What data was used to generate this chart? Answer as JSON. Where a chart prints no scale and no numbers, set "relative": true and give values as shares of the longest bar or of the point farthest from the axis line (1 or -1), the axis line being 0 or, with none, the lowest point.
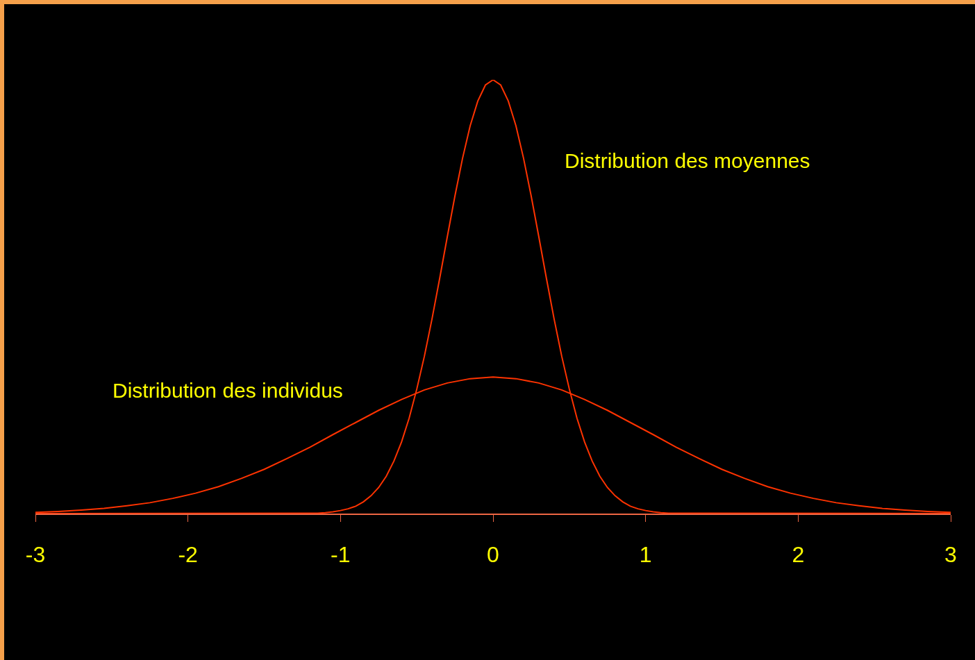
{
  "chart_data": {
    "type": "line",
    "relative": true,
    "xlim": [
      -3,
      3
    ],
    "xticks": [
      -3,
      -2,
      -1,
      0,
      1,
      2,
      3
    ],
    "series": [
      {
        "color": "#ff3300",
        "x": [
          -3,
          -2.85,
          -2.7,
          -2.55,
          -2.4,
          -2.25,
          -2.1,
          -1.95,
          -1.8,
          -1.65,
          -1.5,
          -1.35,
          -1.2,
          -1.05,
          -0.9,
          -0.75,
          -0.6,
          -0.45,
          -0.3,
          -0.15,
          0,
          0.15,
          0.3,
          0.45,
          0.6,
          0.75,
          0.9,
          1.05,
          1.2,
          1.35,
          1.5,
          1.65,
          1.8,
          1.95,
          2.1,
          2.25,
          2.4,
          2.55,
          2.7,
          2.85,
          3
        ],
        "values": [
          0.003,
          0.005,
          0.008,
          0.012,
          0.018,
          0.025,
          0.035,
          0.047,
          0.062,
          0.081,
          0.102,
          0.127,
          0.153,
          0.182,
          0.21,
          0.238,
          0.263,
          0.285,
          0.301,
          0.311,
          0.315,
          0.311,
          0.301,
          0.285,
          0.263,
          0.238,
          0.21,
          0.182,
          0.153,
          0.127,
          0.102,
          0.081,
          0.062,
          0.047,
          0.035,
          0.025,
          0.018,
          0.012,
          0.008,
          0.005,
          0.003
        ]
      },
      {
        "color": "#ff3300",
        "x": [
          -3,
          -1.2,
          -1.15,
          -1.1,
          -1.05,
          -1,
          -0.95,
          -0.9,
          -0.85,
          -0.8,
          -0.75,
          -0.7,
          -0.65,
          -0.6,
          -0.55,
          -0.5,
          -0.45,
          -0.4,
          -0.35,
          -0.3,
          -0.25,
          -0.2,
          -0.15,
          -0.1,
          -0.05,
          0,
          0.05,
          0.1,
          0.15,
          0.2,
          0.25,
          0.3,
          0.35,
          0.4,
          0.45,
          0.5,
          0.55,
          0.6,
          0.65,
          0.7,
          0.75,
          0.8,
          0.85,
          0.9,
          0.95,
          1,
          1.05,
          1.1,
          1.15,
          1.2,
          3
        ],
        "values": [
          0,
          0.001,
          0.001,
          0.002,
          0.004,
          0.007,
          0.011,
          0.017,
          0.027,
          0.041,
          0.06,
          0.086,
          0.121,
          0.165,
          0.22,
          0.287,
          0.363,
          0.449,
          0.542,
          0.638,
          0.732,
          0.819,
          0.894,
          0.951,
          0.988,
          1,
          0.988,
          0.951,
          0.894,
          0.819,
          0.732,
          0.638,
          0.542,
          0.449,
          0.363,
          0.287,
          0.22,
          0.165,
          0.121,
          0.086,
          0.06,
          0.041,
          0.027,
          0.017,
          0.011,
          0.007,
          0.004,
          0.002,
          0.001,
          0.001,
          0
        ]
      }
    ],
    "annotations": [
      "Distribution des moyennes",
      "Distribution des individus"
    ]
  }
}
